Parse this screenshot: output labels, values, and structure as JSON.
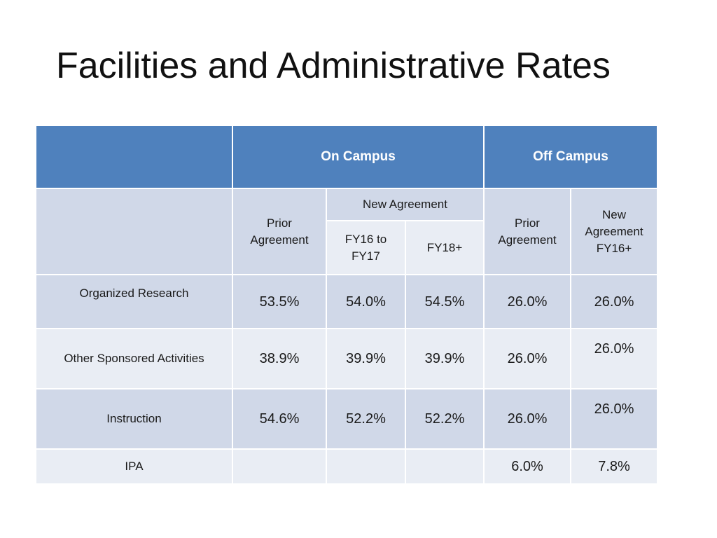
{
  "slide": {
    "title": "Facilities and Administrative Rates"
  },
  "colors": {
    "header": "#4f81bd",
    "band_dark": "#d0d8e8",
    "band_light": "#e9edf4"
  },
  "table": {
    "groups": {
      "on_campus": "On Campus",
      "off_campus": "Off Campus"
    },
    "subheaders": {
      "on_prior": "Prior Agreement",
      "new_agreement": "New Agreement",
      "fy16_17": "FY16 to FY17",
      "fy18": "FY18+",
      "off_prior": "Prior Agreement",
      "off_new": "New Agreement FY16+"
    },
    "rows": [
      {
        "label": "Organized Research",
        "values": [
          "53.5%",
          "54.0%",
          "54.5%",
          "26.0%",
          "26.0%"
        ]
      },
      {
        "label": "Other Sponsored Activities",
        "values": [
          "38.9%",
          "39.9%",
          "39.9%",
          "26.0%",
          "26.0%"
        ]
      },
      {
        "label": "Instruction",
        "values": [
          "54.6%",
          "52.2%",
          "52.2%",
          "26.0%",
          "26.0%"
        ]
      },
      {
        "label": "IPA",
        "values": [
          "",
          "",
          "",
          "6.0%",
          "7.8%"
        ]
      }
    ]
  }
}
